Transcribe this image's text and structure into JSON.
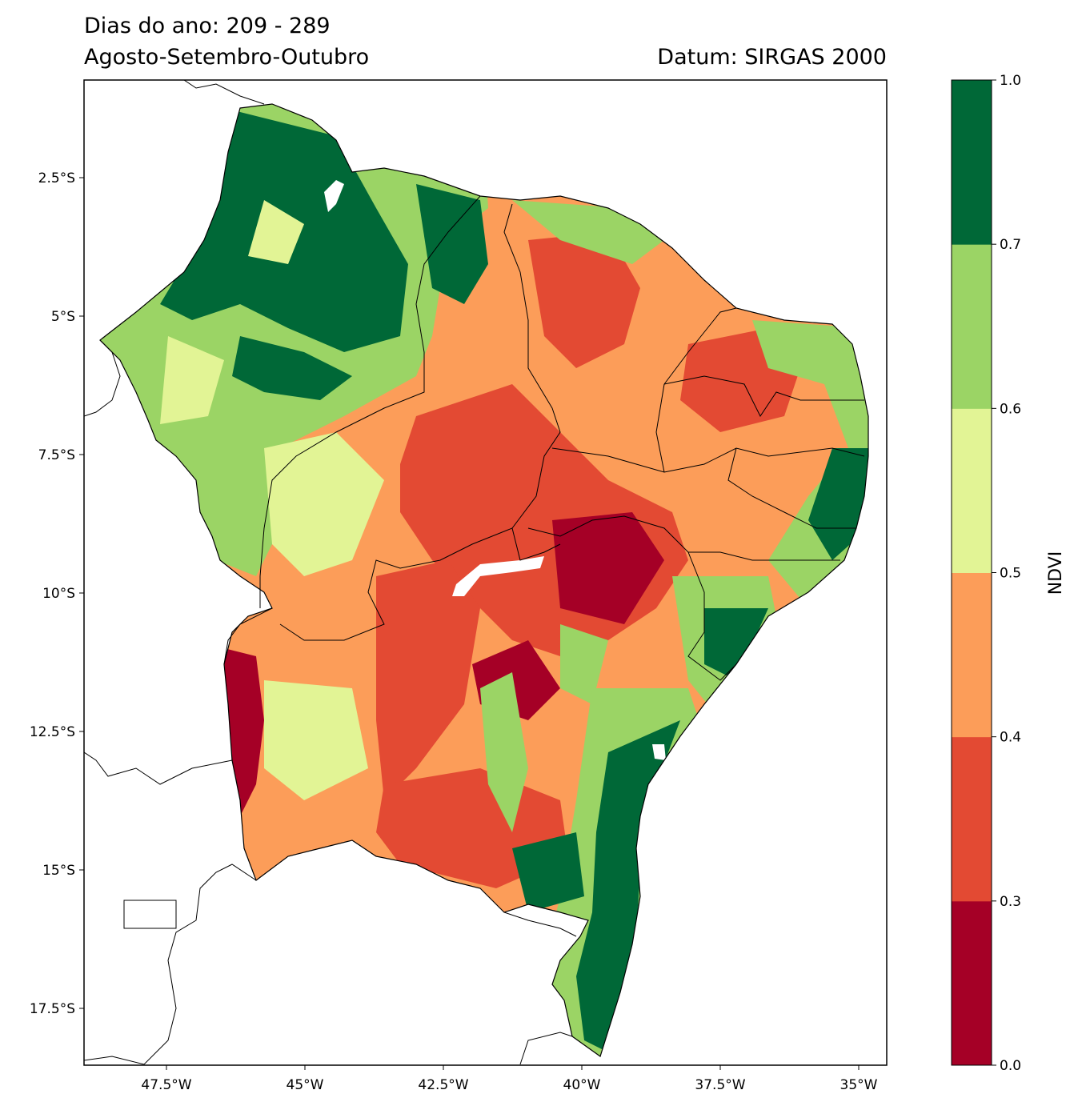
{
  "title": {
    "line1": "Dias do ano: 209 - 289",
    "line2": "Agosto-Setembro-Outubro",
    "datum": "Datum: SIRGAS 2000"
  },
  "map": {
    "lat_ticks": [
      "2.5°S",
      "5°S",
      "7.5°S",
      "10°S",
      "12.5°S",
      "15°S",
      "17.5°S"
    ],
    "lon_ticks": [
      "47.5°W",
      "45°W",
      "42.5°W",
      "40°W",
      "37.5°W",
      "35°W"
    ],
    "palette": {
      "c0": "#a50026",
      "c1": "#e34a33",
      "c2": "#fc9d59",
      "c3": "#e2f495",
      "c4": "#9bd465",
      "c5": "#006837"
    }
  },
  "colorbar": {
    "label": "NDVI",
    "ticks": [
      "0.0",
      "0.3",
      "0.4",
      "0.5",
      "0.6",
      "0.7",
      "1.0"
    ],
    "colors": [
      "#a50026",
      "#e34a33",
      "#fc9d59",
      "#e2f495",
      "#9bd465",
      "#006837"
    ]
  }
}
